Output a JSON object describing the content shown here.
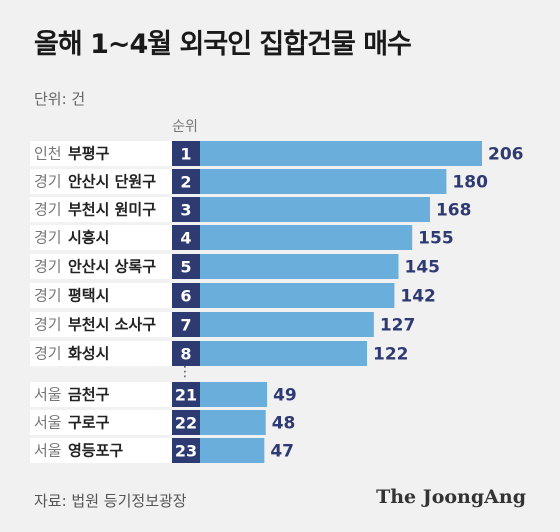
{
  "title": "올해 1~4월 외국인 집합건물 매수",
  "unit_label": "단위: 건",
  "source_label": "자료: 법원 등기정보광장",
  "brand": "The JoongAng",
  "rank_header": "순위",
  "gap_marker": "⋮",
  "colors": {
    "bar": "#6aaedc",
    "rank_box": "#2e3b73",
    "value_text": "#2f3a72",
    "row_band": "#ffffff",
    "background": "#f1f1f1"
  },
  "chart_data": {
    "type": "bar",
    "orientation": "horizontal",
    "title": "올해 1~4월 외국인 집합건물 매수",
    "unit": "단위: 건",
    "rows": [
      {
        "rank": "1",
        "region": "인천",
        "district": "부평구",
        "value": 206
      },
      {
        "rank": "2",
        "region": "경기",
        "district": "안산시 단원구",
        "value": 180
      },
      {
        "rank": "3",
        "region": "경기",
        "district": "부천시 원미구",
        "value": 168
      },
      {
        "rank": "4",
        "region": "경기",
        "district": "시흥시",
        "value": 155
      },
      {
        "rank": "5",
        "region": "경기",
        "district": "안산시 상록구",
        "value": 145
      },
      {
        "rank": "6",
        "region": "경기",
        "district": "평택시",
        "value": 142
      },
      {
        "rank": "7",
        "region": "경기",
        "district": "부천시 소사구",
        "value": 127
      },
      {
        "rank": "8",
        "region": "경기",
        "district": "화성시",
        "value": 122
      },
      {
        "rank": "21",
        "region": "서울",
        "district": "금천구",
        "value": 49
      },
      {
        "rank": "22",
        "region": "서울",
        "district": "구로구",
        "value": 48
      },
      {
        "rank": "23",
        "region": "서울",
        "district": "영등포구",
        "value": 47
      }
    ]
  }
}
